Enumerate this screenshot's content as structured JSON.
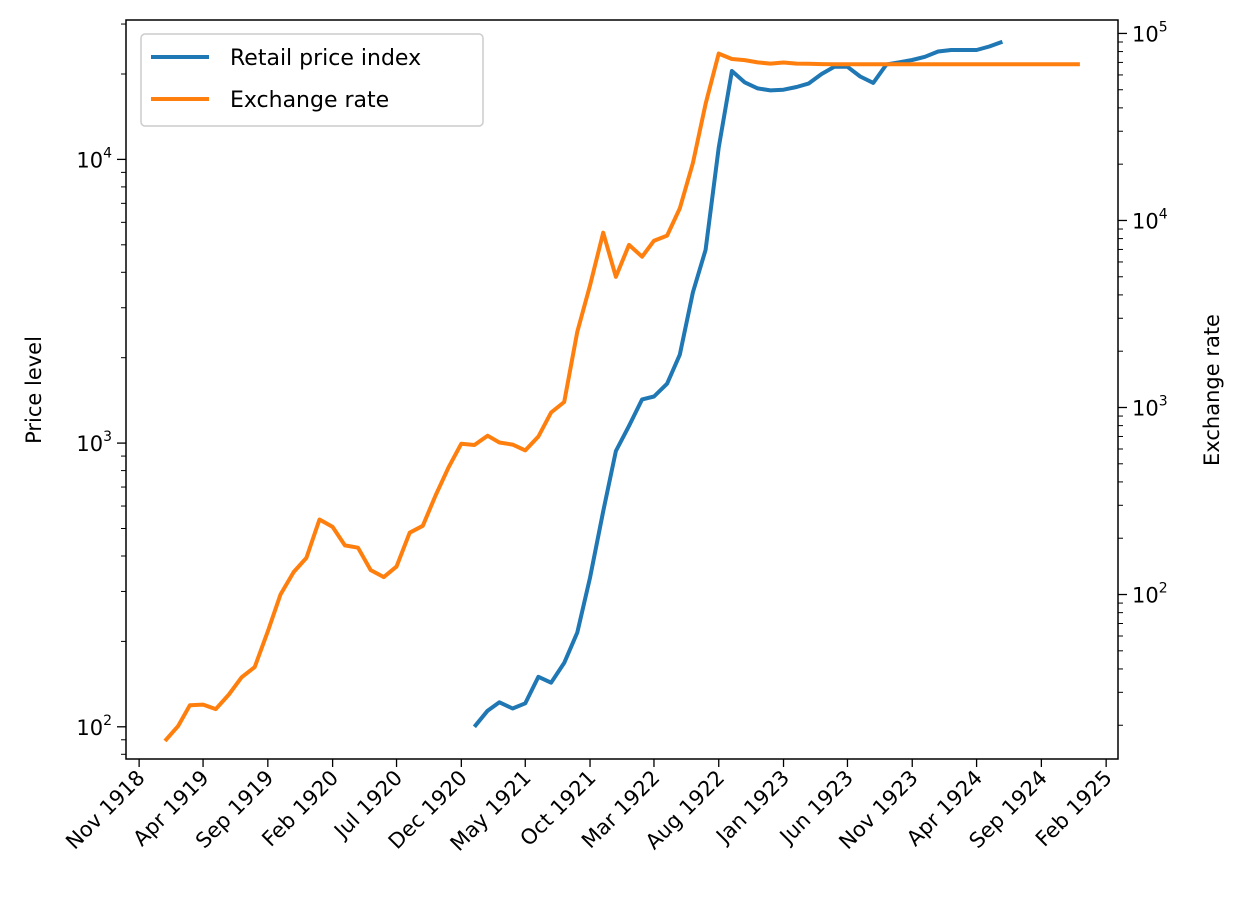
{
  "chart_data": {
    "type": "line",
    "title": "",
    "ylabel_left": "Price level",
    "ylabel_right": "Exchange rate",
    "y_left_scale": "log",
    "y_right_scale": "log",
    "y_left_range": [
      77,
      31000
    ],
    "y_right_range": [
      13.2,
      118000
    ],
    "y_left_ticks": [
      {
        "base": "10",
        "exp": "2",
        "value": 100
      },
      {
        "base": "10",
        "exp": "3",
        "value": 1000
      },
      {
        "base": "10",
        "exp": "4",
        "value": 10000
      }
    ],
    "y_right_ticks": [
      {
        "base": "10",
        "exp": "2",
        "value": 100
      },
      {
        "base": "10",
        "exp": "3",
        "value": 1000
      },
      {
        "base": "10",
        "exp": "4",
        "value": 10000
      },
      {
        "base": "10",
        "exp": "5",
        "value": 100000
      }
    ],
    "x_ticks": [
      "Nov 1918",
      "Apr 1919",
      "Sep 1919",
      "Feb 1920",
      "Jul 1920",
      "Dec 1920",
      "May 1921",
      "Oct 1921",
      "Mar 1922",
      "Aug 1922",
      "Jan 1923",
      "Jun 1923",
      "Nov 1923",
      "Apr 1924",
      "Sep 1924",
      "Feb 1925"
    ],
    "x_tick_dates": [
      "1918-11-01",
      "1919-04-01",
      "1919-09-01",
      "1920-02-01",
      "1920-07-01",
      "1920-12-01",
      "1921-05-01",
      "1921-10-01",
      "1922-03-01",
      "1922-08-01",
      "1923-01-01",
      "1923-06-01",
      "1923-11-01",
      "1924-04-01",
      "1924-09-01",
      "1925-02-01"
    ],
    "x_range": [
      "1918-10-01",
      "1925-03-01"
    ],
    "legend_position": "upper left",
    "grid": false,
    "series": [
      {
        "name": "Retail price index",
        "color": "#1f77b4",
        "axis": "left",
        "x": [
          "1921-01-01",
          "1921-02-01",
          "1921-03-01",
          "1921-04-01",
          "1921-05-01",
          "1921-06-01",
          "1921-07-01",
          "1921-08-01",
          "1921-09-01",
          "1921-10-01",
          "1921-11-01",
          "1921-12-01",
          "1922-01-01",
          "1922-02-01",
          "1922-03-01",
          "1922-04-01",
          "1922-05-01",
          "1922-06-01",
          "1922-07-01",
          "1922-08-01",
          "1922-09-01",
          "1922-10-01",
          "1922-11-01",
          "1922-12-01",
          "1923-01-01",
          "1923-02-01",
          "1923-03-01",
          "1923-04-01",
          "1923-05-01",
          "1923-06-01",
          "1923-07-01",
          "1923-08-01",
          "1923-09-01",
          "1923-10-01",
          "1923-11-01",
          "1923-12-01",
          "1924-01-01",
          "1924-02-01",
          "1924-03-01",
          "1924-04-01",
          "1924-05-01",
          "1924-06-01"
        ],
        "values": [
          100,
          114,
          122,
          116,
          121,
          150,
          143,
          168,
          215,
          335,
          575,
          938,
          1150,
          1426,
          1460,
          1620,
          2050,
          3400,
          4800,
          11000,
          20500,
          18700,
          17800,
          17500,
          17600,
          18000,
          18500,
          20000,
          21200,
          21200,
          19600,
          18600,
          21600,
          22000,
          22400,
          23000,
          24000,
          24300,
          24300,
          24300,
          25000,
          26000
        ]
      },
      {
        "name": "Exchange rate",
        "color": "#ff7f0e",
        "axis": "right",
        "x": [
          "1919-01-01",
          "1919-02-01",
          "1919-03-01",
          "1919-04-01",
          "1919-05-01",
          "1919-06-01",
          "1919-07-01",
          "1919-08-01",
          "1919-09-01",
          "1919-10-01",
          "1919-11-01",
          "1919-12-01",
          "1920-01-01",
          "1920-02-01",
          "1920-03-01",
          "1920-04-01",
          "1920-05-01",
          "1920-06-01",
          "1920-07-01",
          "1920-08-01",
          "1920-09-01",
          "1920-10-01",
          "1920-11-01",
          "1920-12-01",
          "1921-01-01",
          "1921-02-01",
          "1921-03-01",
          "1921-04-01",
          "1921-05-01",
          "1921-06-01",
          "1921-07-01",
          "1921-08-01",
          "1921-09-01",
          "1921-10-01",
          "1921-11-01",
          "1921-12-01",
          "1922-01-01",
          "1922-02-01",
          "1922-03-01",
          "1922-04-01",
          "1922-05-01",
          "1922-06-01",
          "1922-07-01",
          "1922-08-01",
          "1922-09-01",
          "1922-10-01",
          "1922-11-01",
          "1922-12-01",
          "1923-01-01",
          "1923-02-01",
          "1923-03-01",
          "1923-04-01",
          "1923-05-01",
          "1923-06-01",
          "1923-07-01",
          "1923-08-01",
          "1923-09-01",
          "1923-10-01",
          "1923-11-01",
          "1923-12-01",
          "1924-01-01",
          "1924-02-01",
          "1924-03-01",
          "1924-04-01",
          "1924-05-01",
          "1924-06-01",
          "1924-07-01",
          "1924-08-01",
          "1924-09-01",
          "1924-10-01",
          "1924-11-01",
          "1924-12-01"
        ],
        "values": [
          16.5,
          19.8,
          25.6,
          25.8,
          24.4,
          29.2,
          36.1,
          40.9,
          63.5,
          100,
          132,
          157,
          252,
          230,
          183,
          178,
          135,
          124,
          141,
          214,
          233,
          338,
          479,
          640,
          630,
          707,
          650,
          633,
          590,
          700,
          940,
          1070,
          2540,
          4490,
          8600,
          5000,
          7400,
          6400,
          7800,
          8300,
          11600,
          20300,
          42000,
          78000,
          73000,
          72000,
          70000,
          69000,
          69900,
          69000,
          68800,
          68600,
          68500,
          68500,
          68500,
          68500,
          68500,
          68500,
          68500,
          68500,
          68500,
          68500,
          68500,
          68500,
          68500,
          68500,
          68500,
          68500,
          68500,
          68500,
          68500,
          68500
        ]
      }
    ]
  }
}
